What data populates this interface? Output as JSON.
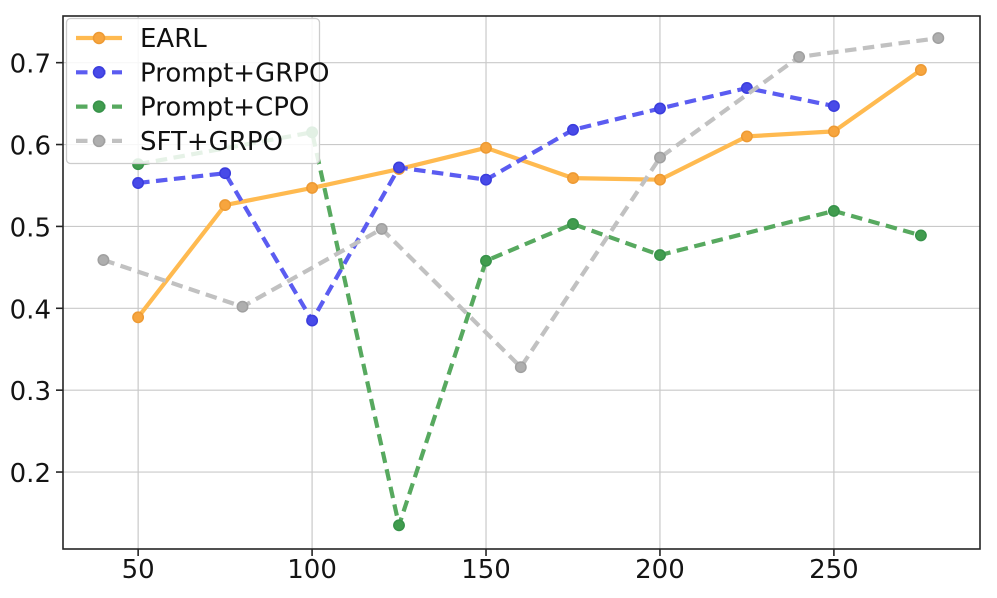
{
  "chart_data": {
    "type": "line",
    "title": "",
    "xlabel": "",
    "ylabel": "",
    "xlim": [
      28.4,
      292.0
    ],
    "ylim": [
      0.106,
      0.757
    ],
    "grid": true,
    "legend_position": "upper left",
    "x_tick_values": [
      50,
      100,
      150,
      200,
      250
    ],
    "x_tick_labels": [
      "50",
      "100",
      "150",
      "200",
      "250"
    ],
    "y_tick_values": [
      0.2,
      0.3,
      0.4,
      0.5,
      0.6,
      0.7
    ],
    "y_tick_labels": [
      "0.2",
      "0.3",
      "0.4",
      "0.5",
      "0.6",
      "0.7"
    ],
    "colors": {
      "background": "#ffffff",
      "grid": "#c9c9c9",
      "spine": "#242424",
      "tick_label": "#141414",
      "legend_background": "rgba(255,255,255,0.85)",
      "legend_border": "#cccccc",
      "legend_text": "#111111"
    },
    "series": [
      {
        "name": "EARL",
        "line_style": "solid",
        "color": "#FFBA50",
        "marker_color": "#F7A53E",
        "marker_edge": "#ED9A33",
        "x": [
          50,
          75,
          100,
          125,
          150,
          175,
          200,
          225,
          250,
          275
        ],
        "y": [
          0.389,
          0.526,
          0.547,
          0.57,
          0.596,
          0.559,
          0.557,
          0.61,
          0.616,
          0.691
        ]
      },
      {
        "name": "Prompt+GRPO",
        "line_style": "dashed",
        "color": "#5B5CF1",
        "marker_color": "#484AE8",
        "marker_edge": "#3B3DDD",
        "x": [
          50,
          75,
          100,
          125,
          150,
          175,
          200,
          225,
          250
        ],
        "y": [
          0.553,
          0.565,
          0.385,
          0.572,
          0.557,
          0.618,
          0.644,
          0.669,
          0.647
        ]
      },
      {
        "name": "Prompt+CPO",
        "line_style": "dashed",
        "color": "#57A95F",
        "marker_color": "#419C4E",
        "marker_edge": "#37924A",
        "x": [
          50,
          100,
          125,
          150,
          175,
          200,
          250,
          275
        ],
        "y": [
          0.576,
          0.615,
          0.135,
          0.458,
          0.503,
          0.465,
          0.519,
          0.489
        ]
      },
      {
        "name": "SFT+GRPO",
        "line_style": "dashed",
        "color": "#C1C1C1",
        "marker_color": "#AEAEAE",
        "marker_edge": "#A0A0A0",
        "x": [
          40,
          80,
          120,
          160,
          200,
          240,
          280
        ],
        "y": [
          0.459,
          0.402,
          0.497,
          0.328,
          0.584,
          0.707,
          0.73
        ]
      }
    ]
  }
}
